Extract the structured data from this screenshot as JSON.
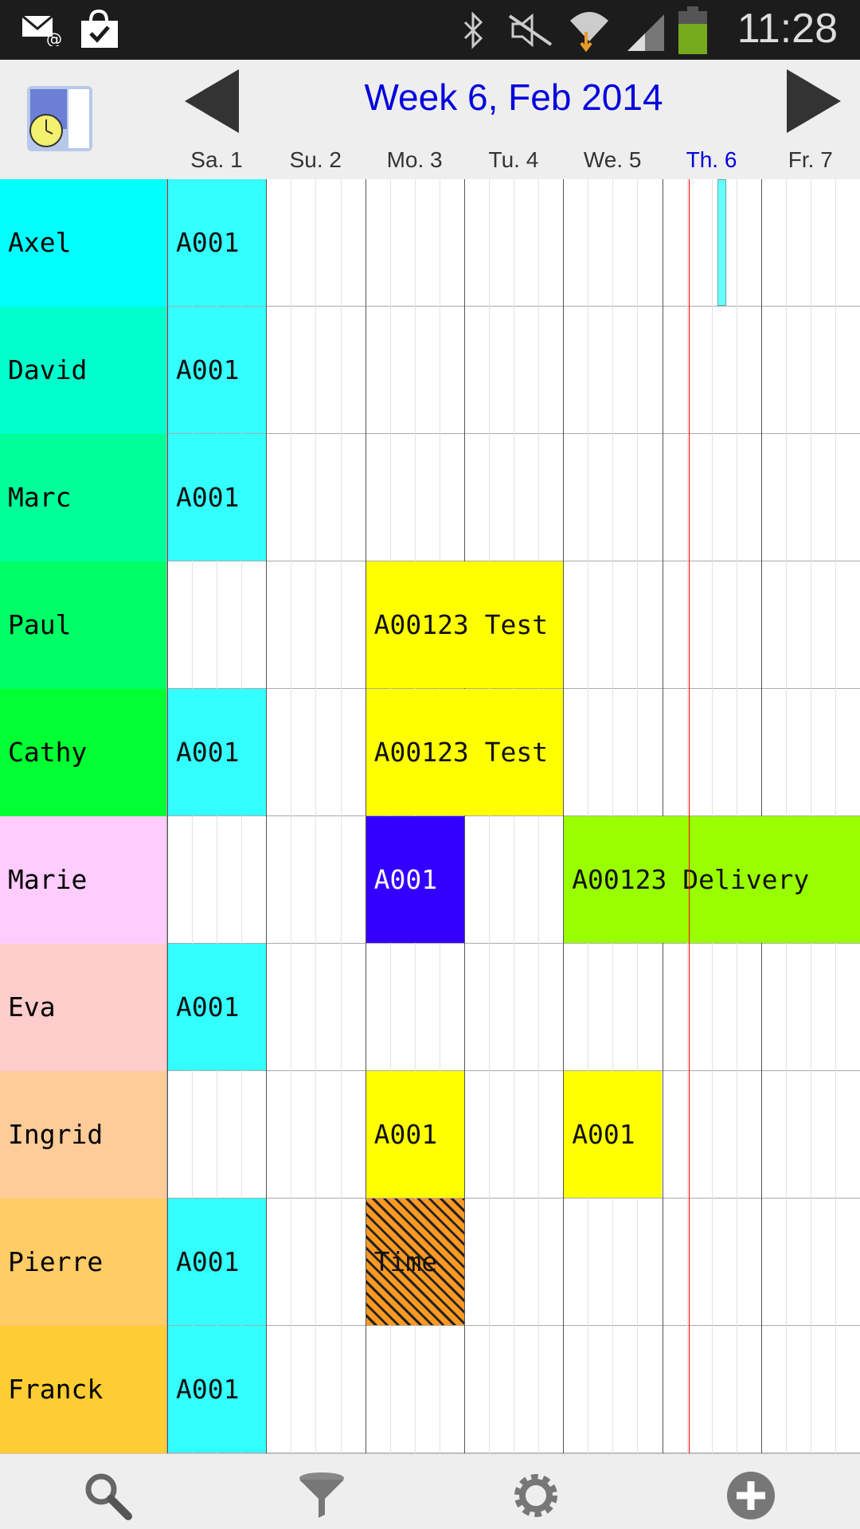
{
  "status_bar": {
    "time": "11:28",
    "icons": [
      "email-icon",
      "store-check-icon",
      "bluetooth-icon",
      "mute-icon",
      "wifi-icon",
      "signal-icon",
      "battery-icon"
    ]
  },
  "header": {
    "title": "Week 6, Feb 2014",
    "prev": "previous-week",
    "next": "next-week",
    "days": [
      {
        "label": "Sa. 1"
      },
      {
        "label": "Su. 2"
      },
      {
        "label": "Mo. 3"
      },
      {
        "label": "Tu. 4"
      },
      {
        "label": "We. 5"
      },
      {
        "label": "Th. 6",
        "today": true
      },
      {
        "label": "Fr. 7"
      }
    ],
    "today_color": "#0000dd"
  },
  "rows": [
    {
      "name": "Axel",
      "color": "#00ffff",
      "events": [
        {
          "label": "A001",
          "start_day": 0,
          "days": 1,
          "color": "#33ffff"
        },
        {
          "label": "",
          "start_day": 5.55,
          "days": 0.1,
          "color": "#66ffff"
        }
      ]
    },
    {
      "name": "David",
      "color": "#00ffcc",
      "events": [
        {
          "label": "A001",
          "start_day": 0,
          "days": 1,
          "color": "#33ffff"
        }
      ]
    },
    {
      "name": "Marc",
      "color": "#00ff99",
      "events": [
        {
          "label": "A001",
          "start_day": 0,
          "days": 1,
          "color": "#33ffff"
        }
      ]
    },
    {
      "name": "Paul",
      "color": "#00ff66",
      "events": [
        {
          "label": "A00123 Test",
          "start_day": 2,
          "days": 2,
          "color": "#ffff00"
        }
      ]
    },
    {
      "name": "Cathy",
      "color": "#00ff33",
      "events": [
        {
          "label": "A001",
          "start_day": 0,
          "days": 1,
          "color": "#33ffff"
        },
        {
          "label": "A00123 Test",
          "start_day": 2,
          "days": 2,
          "color": "#ffff00"
        }
      ]
    },
    {
      "name": "Marie",
      "color": "#ffccff",
      "events": [
        {
          "label": "A001",
          "start_day": 2,
          "days": 1,
          "color": "#3300ff",
          "text": "#ffffff"
        },
        {
          "label": "A00123 Delivery",
          "start_day": 4,
          "days": 3,
          "color": "#99ff00"
        }
      ]
    },
    {
      "name": "Eva",
      "color": "#ffcccc",
      "events": [
        {
          "label": "A001",
          "start_day": 0,
          "days": 1,
          "color": "#33ffff"
        }
      ]
    },
    {
      "name": "Ingrid",
      "color": "#ffcc99",
      "events": [
        {
          "label": "A001",
          "start_day": 2,
          "days": 1,
          "color": "#ffff00"
        },
        {
          "label": "A001",
          "start_day": 4,
          "days": 1,
          "color": "#ffff00"
        }
      ]
    },
    {
      "name": "Pierre",
      "color": "#ffcc66",
      "events": [
        {
          "label": "A001",
          "start_day": 0,
          "days": 1,
          "color": "#33ffff"
        },
        {
          "label": "Time",
          "start_day": 2,
          "days": 1,
          "color": "#ff9922",
          "hatched": true
        }
      ]
    },
    {
      "name": "Franck",
      "color": "#ffcc33",
      "events": [
        {
          "label": "A001",
          "start_day": 0,
          "days": 1,
          "color": "#33ffff"
        }
      ]
    }
  ],
  "now_marker": {
    "day": 5.27,
    "color": "#ff0000"
  },
  "bottom_bar": {
    "icons": [
      "search-icon",
      "filter-icon",
      "settings-icon",
      "add-icon"
    ]
  }
}
